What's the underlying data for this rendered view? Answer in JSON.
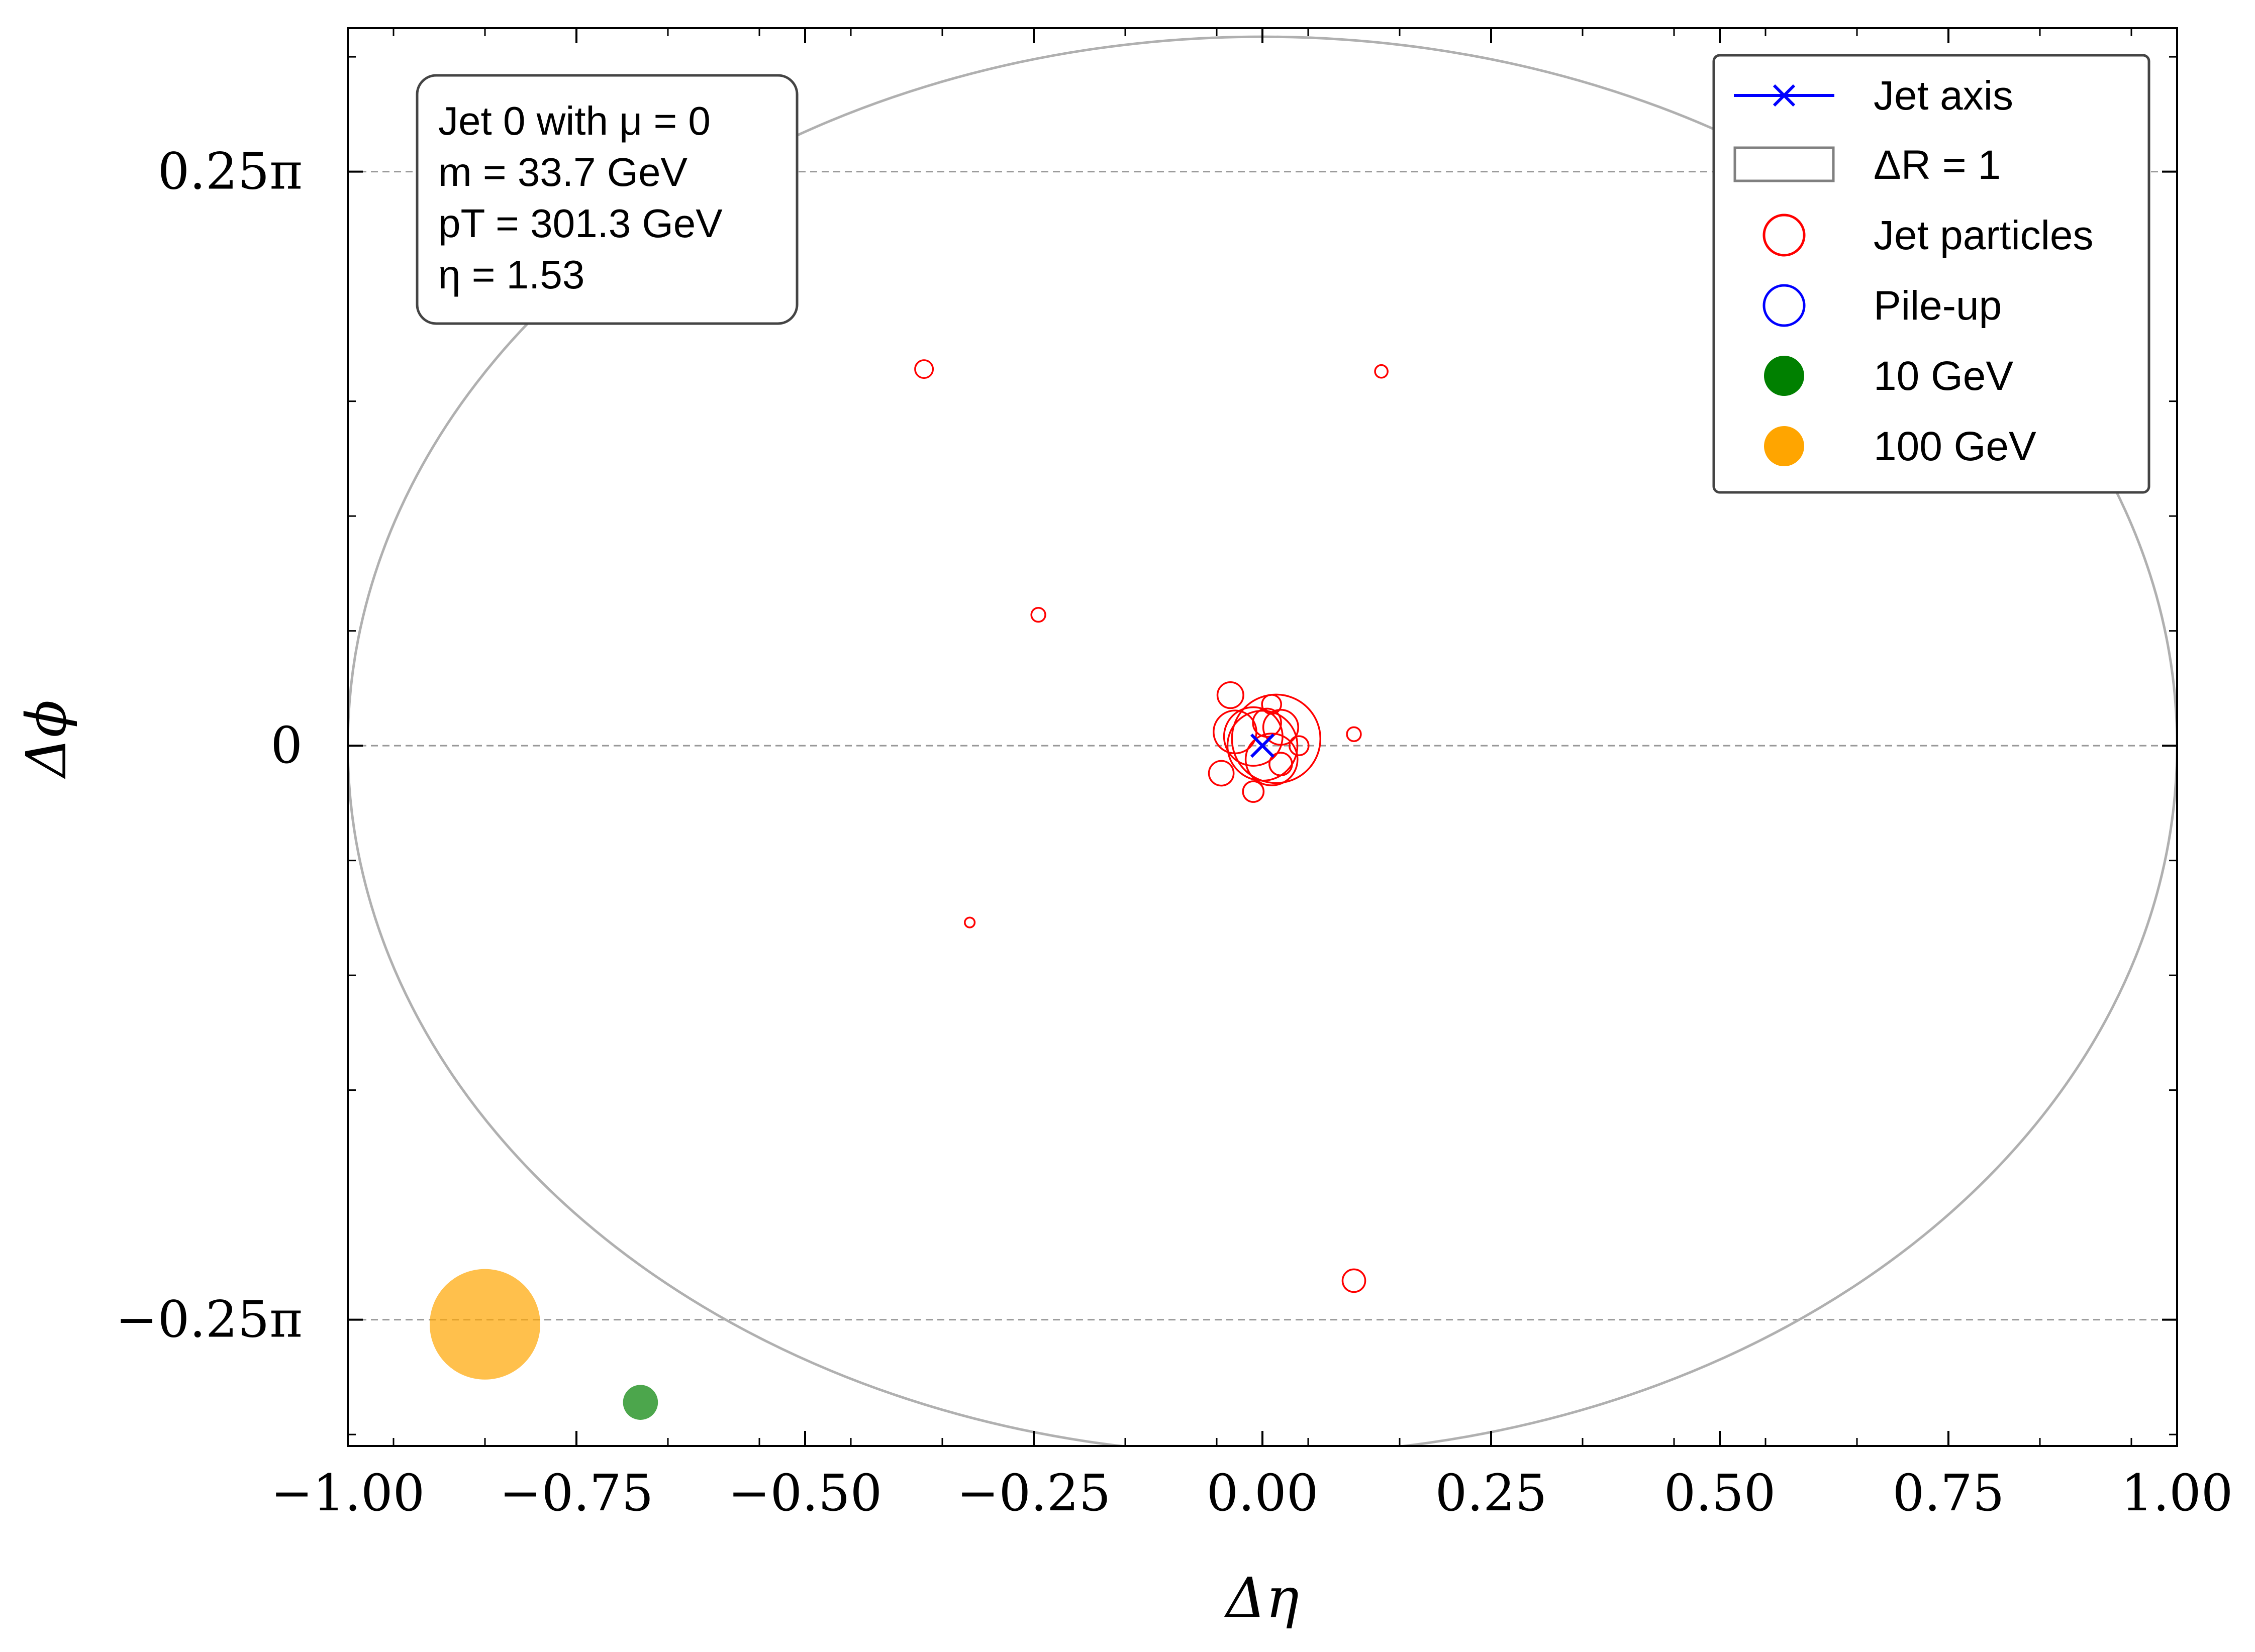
{
  "chart_data": {
    "type": "scatter",
    "xlabel": "Δη",
    "ylabel": "Δϕ",
    "xlim": [
      -1.0,
      1.0
    ],
    "ylim": [
      -0.305,
      0.3125
    ],
    "x_ticks": [
      {
        "value": -1.0,
        "label": "−1.00"
      },
      {
        "value": -0.75,
        "label": "−0.75"
      },
      {
        "value": -0.5,
        "label": "−0.50"
      },
      {
        "value": -0.25,
        "label": "−0.25"
      },
      {
        "value": 0.0,
        "label": "0.00"
      },
      {
        "value": 0.25,
        "label": "0.25"
      },
      {
        "value": 0.5,
        "label": "0.50"
      },
      {
        "value": 0.75,
        "label": "0.75"
      },
      {
        "value": 1.0,
        "label": "1.00"
      }
    ],
    "y_ticks": [
      {
        "value": 0.25,
        "label": "0.25π"
      },
      {
        "value": 0.0,
        "label": "0"
      },
      {
        "value": -0.25,
        "label": "−0.25π"
      }
    ],
    "y_unit": "π",
    "grid": "horizontal dashed at labeled y ticks",
    "info_box": {
      "lines": [
        "Jet 0 with μ = 0",
        "m = 33.7 GeV",
        "pT = 301.3 GeV",
        "η = 1.53"
      ]
    },
    "legend": {
      "placement": "top-right",
      "entries": [
        {
          "label": "Jet axis",
          "marker": "x-line",
          "color": "#0000ff"
        },
        {
          "label": "ΔR = 1",
          "marker": "rect",
          "color": "#808080"
        },
        {
          "label": "Jet particles",
          "marker": "open-circle",
          "color": "#ff0000"
        },
        {
          "label": "Pile-up",
          "marker": "open-circle",
          "color": "#0000ff"
        },
        {
          "label": "10 GeV",
          "marker": "filled-circle",
          "color": "#008000"
        },
        {
          "label": "100 GeV",
          "marker": "filled-circle",
          "color": "#ffa500"
        }
      ]
    },
    "jet_axis": {
      "x": 0.0,
      "y": 0.0,
      "color": "#0000ff"
    },
    "delta_r_circle": {
      "x": 0.0,
      "y": 0.0,
      "r": 1.0,
      "color": "#b0b0b0"
    },
    "reference_markers": [
      {
        "label": "100 GeV",
        "x": -0.85,
        "y": -0.252,
        "pt": 100,
        "color": "#ffa500"
      },
      {
        "label": "10 GeV",
        "x": -0.68,
        "y": -0.286,
        "pt": 10,
        "color": "#008000"
      }
    ],
    "series": [
      {
        "name": "Jet particles",
        "color": "#ff0000",
        "points": [
          {
            "x": -0.37,
            "y": 0.164,
            "pt": 2.6
          },
          {
            "x": 0.13,
            "y": 0.163,
            "pt": 1.3
          },
          {
            "x": -0.245,
            "y": 0.057,
            "pt": 1.6
          },
          {
            "x": -0.32,
            "y": -0.077,
            "pt": 0.8
          },
          {
            "x": 0.1,
            "y": -0.233,
            "pt": 4.2
          },
          {
            "x": 0.1,
            "y": 0.005,
            "pt": 1.6
          },
          {
            "x": 0.015,
            "y": 0.003,
            "pt": 64
          },
          {
            "x": 0.0,
            "y": 0.0,
            "pt": 40
          },
          {
            "x": -0.01,
            "y": 0.004,
            "pt": 28
          },
          {
            "x": 0.01,
            "y": -0.006,
            "pt": 22
          },
          {
            "x": -0.03,
            "y": 0.006,
            "pt": 15
          },
          {
            "x": 0.02,
            "y": 0.008,
            "pt": 10
          },
          {
            "x": -0.035,
            "y": 0.022,
            "pt": 5.5
          },
          {
            "x": 0.005,
            "y": 0.01,
            "pt": 6.5
          },
          {
            "x": 0.02,
            "y": -0.008,
            "pt": 4.2
          },
          {
            "x": -0.045,
            "y": -0.012,
            "pt": 5.0
          },
          {
            "x": 0.04,
            "y": 0.0,
            "pt": 3.0
          },
          {
            "x": -0.01,
            "y": -0.02,
            "pt": 3.5
          },
          {
            "x": 0.01,
            "y": 0.018,
            "pt": 3.0
          }
        ]
      },
      {
        "name": "Pile-up",
        "color": "#0000ff",
        "points": []
      }
    ]
  }
}
